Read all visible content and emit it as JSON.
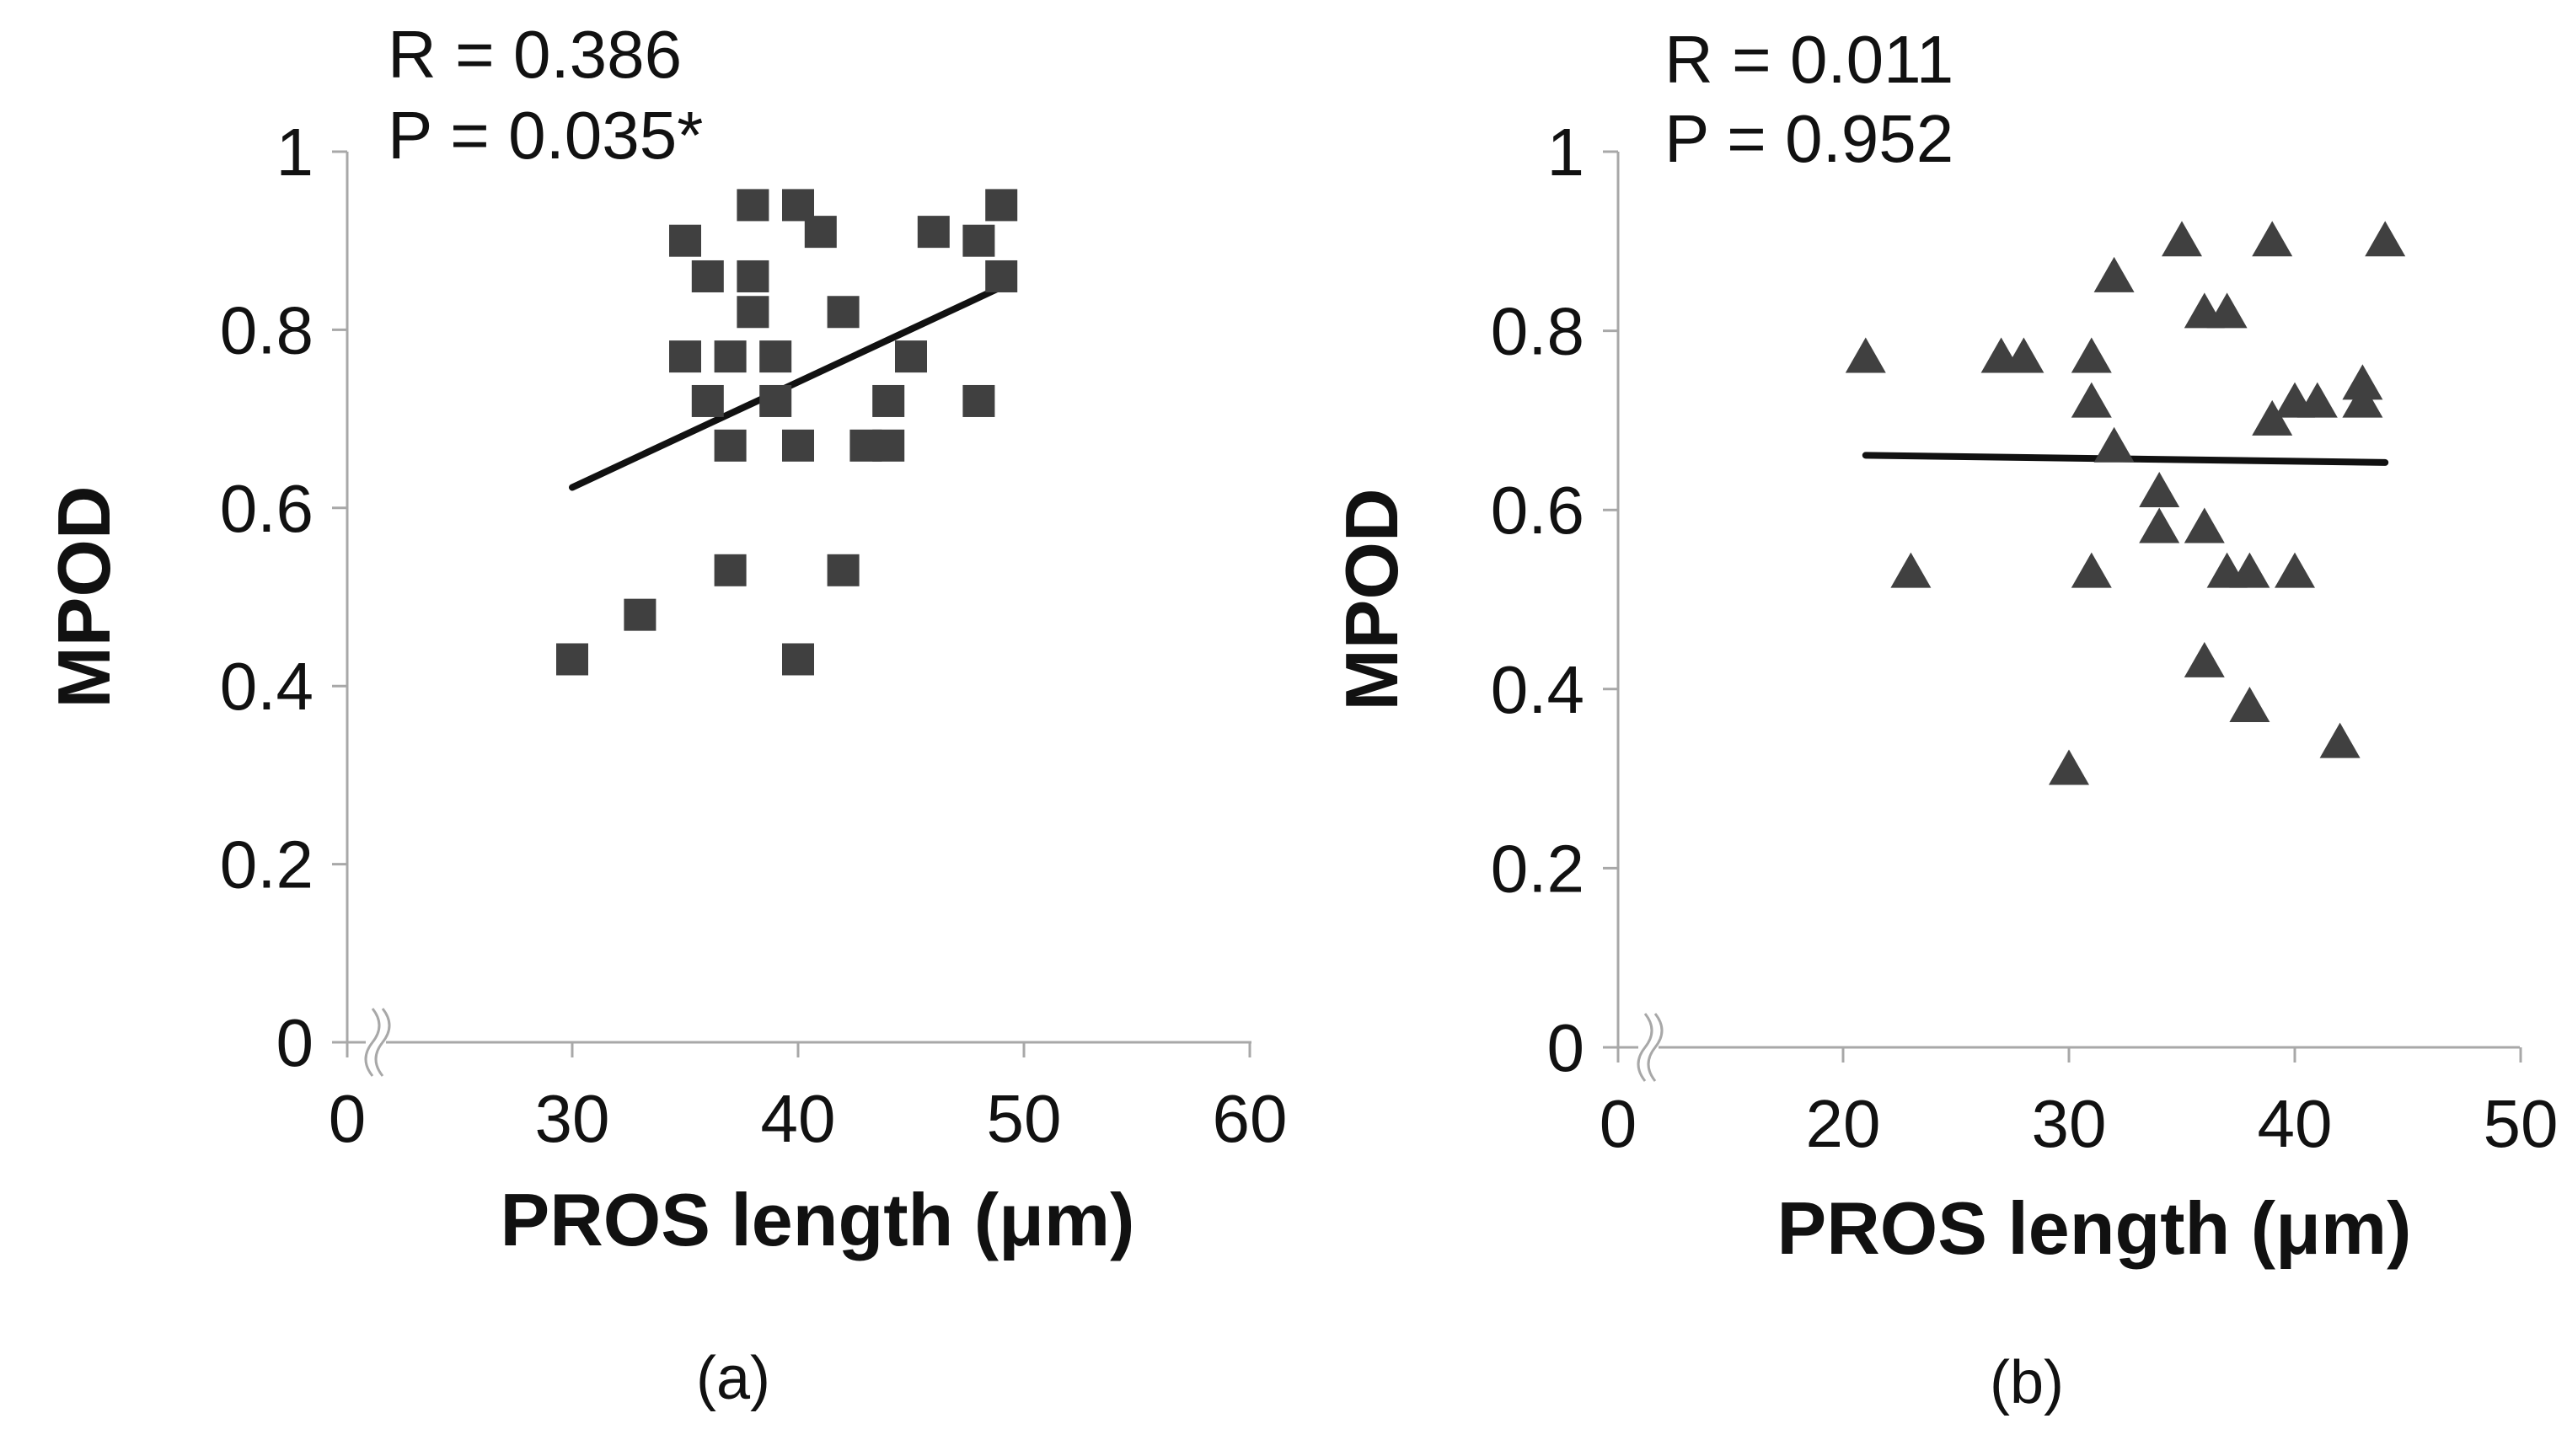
{
  "chart_data": [
    {
      "type": "scatter",
      "panel_label": "(a)",
      "title": "",
      "xlabel": "PROS length (μm)",
      "ylabel": "MPOD",
      "xlim": [
        0,
        60
      ],
      "ylim": [
        0,
        1
      ],
      "x_ticks": [
        0,
        30,
        40,
        50,
        60
      ],
      "x_tick_labels": [
        "0",
        "30",
        "40",
        "50",
        "60"
      ],
      "y_ticks": [
        0,
        0.2,
        0.4,
        0.6,
        0.8,
        1
      ],
      "y_tick_labels": [
        "0",
        "0.2",
        "0.4",
        "0.6",
        "0.8",
        "1"
      ],
      "axis_break": "x-axis between 0 and 30",
      "grid": false,
      "marker": "square",
      "marker_color": "#404040",
      "stats": {
        "r": "R = 0.386",
        "p": "P = 0.035*"
      },
      "trendline": {
        "x": [
          30,
          49
        ],
        "y": [
          0.623,
          0.848
        ]
      },
      "points": [
        {
          "x": 30,
          "y": 0.43
        },
        {
          "x": 33,
          "y": 0.48
        },
        {
          "x": 35,
          "y": 0.9
        },
        {
          "x": 35,
          "y": 0.77
        },
        {
          "x": 36,
          "y": 0.86
        },
        {
          "x": 36,
          "y": 0.72
        },
        {
          "x": 37,
          "y": 0.77
        },
        {
          "x": 37,
          "y": 0.67
        },
        {
          "x": 37,
          "y": 0.53
        },
        {
          "x": 38,
          "y": 0.94
        },
        {
          "x": 38,
          "y": 0.86
        },
        {
          "x": 38,
          "y": 0.82
        },
        {
          "x": 39,
          "y": 0.77
        },
        {
          "x": 39,
          "y": 0.72
        },
        {
          "x": 40,
          "y": 0.94
        },
        {
          "x": 40,
          "y": 0.67
        },
        {
          "x": 40,
          "y": 0.43
        },
        {
          "x": 41,
          "y": 0.91
        },
        {
          "x": 42,
          "y": 0.82
        },
        {
          "x": 42,
          "y": 0.53
        },
        {
          "x": 43,
          "y": 0.67
        },
        {
          "x": 44,
          "y": 0.72
        },
        {
          "x": 44,
          "y": 0.67
        },
        {
          "x": 45,
          "y": 0.77
        },
        {
          "x": 46,
          "y": 0.91
        },
        {
          "x": 48,
          "y": 0.9
        },
        {
          "x": 48,
          "y": 0.72
        },
        {
          "x": 49,
          "y": 0.94
        },
        {
          "x": 49,
          "y": 0.86
        }
      ]
    },
    {
      "type": "scatter",
      "panel_label": "(b)",
      "title": "",
      "xlabel": "PROS length (μm)",
      "ylabel": "MPOD",
      "xlim": [
        0,
        50
      ],
      "ylim": [
        0,
        1
      ],
      "x_ticks": [
        0,
        20,
        30,
        40,
        50
      ],
      "x_tick_labels": [
        "0",
        "20",
        "30",
        "40",
        "50"
      ],
      "y_ticks": [
        0,
        0.2,
        0.4,
        0.6,
        0.8,
        1
      ],
      "y_tick_labels": [
        "0",
        "0.2",
        "0.4",
        "0.6",
        "0.8",
        "1"
      ],
      "axis_break": "x-axis between 0 and 20",
      "grid": false,
      "marker": "triangle",
      "marker_color": "#404040",
      "stats": {
        "r": "R = 0.011",
        "p": "P = 0.952"
      },
      "trendline": {
        "x": [
          21,
          44
        ],
        "y": [
          0.661,
          0.653
        ]
      },
      "points": [
        {
          "x": 21,
          "y": 0.77
        },
        {
          "x": 23,
          "y": 0.53
        },
        {
          "x": 27,
          "y": 0.77
        },
        {
          "x": 28,
          "y": 0.77
        },
        {
          "x": 30,
          "y": 0.31
        },
        {
          "x": 31,
          "y": 0.77
        },
        {
          "x": 31,
          "y": 0.72
        },
        {
          "x": 31,
          "y": 0.53
        },
        {
          "x": 32,
          "y": 0.86
        },
        {
          "x": 32,
          "y": 0.67
        },
        {
          "x": 34,
          "y": 0.62
        },
        {
          "x": 34,
          "y": 0.58
        },
        {
          "x": 35,
          "y": 0.9
        },
        {
          "x": 36,
          "y": 0.82
        },
        {
          "x": 36,
          "y": 0.58
        },
        {
          "x": 36,
          "y": 0.43
        },
        {
          "x": 37,
          "y": 0.82
        },
        {
          "x": 37,
          "y": 0.53
        },
        {
          "x": 38,
          "y": 0.53
        },
        {
          "x": 38,
          "y": 0.38
        },
        {
          "x": 39,
          "y": 0.9
        },
        {
          "x": 39,
          "y": 0.7
        },
        {
          "x": 40,
          "y": 0.72
        },
        {
          "x": 40,
          "y": 0.53
        },
        {
          "x": 41,
          "y": 0.72
        },
        {
          "x": 42,
          "y": 0.34
        },
        {
          "x": 43,
          "y": 0.74
        },
        {
          "x": 43,
          "y": 0.72
        },
        {
          "x": 44,
          "y": 0.9
        }
      ]
    }
  ]
}
